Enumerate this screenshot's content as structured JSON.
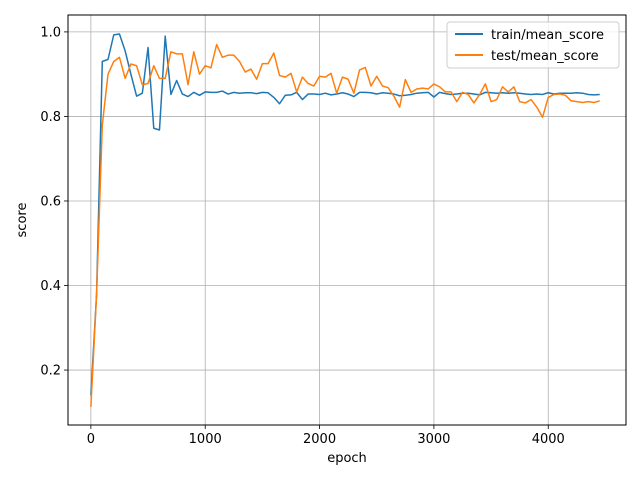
{
  "chart_data": {
    "type": "line",
    "title": "",
    "xlabel": "epoch",
    "ylabel": "score",
    "xlim": [
      -200,
      4680
    ],
    "ylim": [
      0.07,
      1.04
    ],
    "xticks": [
      0,
      1000,
      2000,
      3000,
      4000
    ],
    "yticks": [
      0.2,
      0.4,
      0.6,
      0.8,
      1.0
    ],
    "xtick_labels": [
      "0",
      "1000",
      "2000",
      "3000",
      "4000"
    ],
    "ytick_labels": [
      "0.2",
      "0.4",
      "0.6",
      "0.8",
      "1.0"
    ],
    "grid": true,
    "legend_position": "top-right",
    "series": [
      {
        "name": "train/mean_score",
        "color": "#1f77b4",
        "x": [
          0,
          50,
          100,
          150,
          200,
          250,
          300,
          350,
          400,
          450,
          500,
          550,
          600,
          650,
          700,
          750,
          800,
          850,
          900,
          950,
          1000,
          1050,
          1100,
          1150,
          1200,
          1250,
          1300,
          1350,
          1400,
          1450,
          1500,
          1550,
          1600,
          1650,
          1700,
          1750,
          1800,
          1850,
          1900,
          1950,
          2000,
          2050,
          2100,
          2150,
          2200,
          2250,
          2300,
          2350,
          2400,
          2450,
          2500,
          2550,
          2600,
          2650,
          2700,
          2750,
          2800,
          2850,
          2900,
          2950,
          3000,
          3050,
          3100,
          3150,
          3200,
          3250,
          3300,
          3350,
          3400,
          3450,
          3500,
          3550,
          3600,
          3650,
          3700,
          3750,
          3800,
          3850,
          3900,
          3950,
          4000,
          4050,
          4100,
          4150,
          4200,
          4250,
          4300,
          4350,
          4400,
          4450
        ],
        "values": [
          0.14,
          0.38,
          0.93,
          0.935,
          0.993,
          0.995,
          0.955,
          0.9,
          0.848,
          0.855,
          0.963,
          0.772,
          0.768,
          0.99,
          0.852,
          0.885,
          0.853,
          0.847,
          0.857,
          0.85,
          0.858,
          0.857,
          0.857,
          0.86,
          0.853,
          0.857,
          0.855,
          0.856,
          0.856,
          0.854,
          0.857,
          0.856,
          0.845,
          0.83,
          0.85,
          0.851,
          0.857,
          0.84,
          0.853,
          0.853,
          0.852,
          0.855,
          0.851,
          0.853,
          0.856,
          0.853,
          0.847,
          0.857,
          0.857,
          0.856,
          0.853,
          0.856,
          0.855,
          0.853,
          0.849,
          0.85,
          0.852,
          0.855,
          0.856,
          0.857,
          0.846,
          0.857,
          0.854,
          0.852,
          0.853,
          0.855,
          0.855,
          0.853,
          0.851,
          0.857,
          0.856,
          0.855,
          0.856,
          0.855,
          0.856,
          0.855,
          0.853,
          0.852,
          0.853,
          0.852,
          0.856,
          0.853,
          0.855,
          0.855,
          0.855,
          0.856,
          0.855,
          0.852,
          0.851,
          0.852
        ]
      },
      {
        "name": "test/mean_score",
        "color": "#ff7f0e",
        "x": [
          0,
          50,
          100,
          150,
          200,
          250,
          300,
          350,
          400,
          450,
          500,
          550,
          600,
          650,
          700,
          750,
          800,
          850,
          900,
          950,
          1000,
          1050,
          1100,
          1150,
          1200,
          1250,
          1300,
          1350,
          1400,
          1450,
          1500,
          1550,
          1600,
          1650,
          1700,
          1750,
          1800,
          1850,
          1900,
          1950,
          2000,
          2050,
          2100,
          2150,
          2200,
          2250,
          2300,
          2350,
          2400,
          2450,
          2500,
          2550,
          2600,
          2650,
          2700,
          2750,
          2800,
          2850,
          2900,
          2950,
          3000,
          3050,
          3100,
          3150,
          3200,
          3250,
          3300,
          3350,
          3400,
          3450,
          3500,
          3550,
          3600,
          3650,
          3700,
          3750,
          3800,
          3850,
          3900,
          3950,
          4000,
          4050,
          4100,
          4150,
          4200,
          4250,
          4300,
          4350,
          4400,
          4450
        ],
        "values": [
          0.113,
          0.38,
          0.78,
          0.9,
          0.93,
          0.94,
          0.89,
          0.924,
          0.92,
          0.875,
          0.878,
          0.92,
          0.89,
          0.89,
          0.953,
          0.948,
          0.948,
          0.875,
          0.953,
          0.9,
          0.92,
          0.915,
          0.97,
          0.94,
          0.945,
          0.945,
          0.93,
          0.905,
          0.912,
          0.888,
          0.925,
          0.925,
          0.95,
          0.897,
          0.893,
          0.902,
          0.858,
          0.893,
          0.878,
          0.872,
          0.895,
          0.893,
          0.902,
          0.855,
          0.893,
          0.888,
          0.855,
          0.91,
          0.916,
          0.872,
          0.895,
          0.872,
          0.868,
          0.848,
          0.822,
          0.887,
          0.857,
          0.865,
          0.867,
          0.865,
          0.877,
          0.87,
          0.858,
          0.858,
          0.835,
          0.857,
          0.852,
          0.832,
          0.852,
          0.877,
          0.835,
          0.84,
          0.87,
          0.858,
          0.87,
          0.835,
          0.832,
          0.84,
          0.822,
          0.798,
          0.845,
          0.852,
          0.853,
          0.85,
          0.837,
          0.835,
          0.833,
          0.835,
          0.833,
          0.837
        ]
      }
    ]
  }
}
